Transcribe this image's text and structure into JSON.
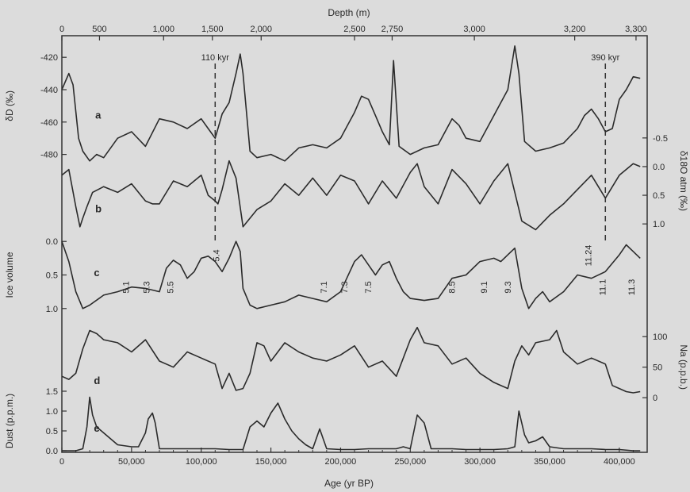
{
  "chart_data": {
    "type": "line",
    "x_axis": {
      "label": "Age (yr BP)",
      "range": [
        0,
        420000
      ],
      "ticks": [
        0,
        50000,
        100000,
        150000,
        200000,
        250000,
        300000,
        350000,
        400000
      ],
      "tick_labels": [
        "0",
        "50,000",
        "100,000",
        "150,000",
        "200,000",
        "250,000",
        "300,000",
        "350,000",
        "400,000"
      ]
    },
    "top_axis": {
      "label": "Depth (m)",
      "ticks": [
        {
          "age": 0,
          "label": "0"
        },
        {
          "age": 27000,
          "label": "500"
        },
        {
          "age": 73000,
          "label": "1,000"
        },
        {
          "age": 108000,
          "label": "1,500"
        },
        {
          "age": 143000,
          "label": "2,000"
        },
        {
          "age": 210000,
          "label": "2,500"
        },
        {
          "age": 237000,
          "label": "2,750"
        },
        {
          "age": 296000,
          "label": "3,000"
        },
        {
          "age": 368000,
          "label": "3,200"
        },
        {
          "age": 412000,
          "label": "3,300"
        }
      ]
    },
    "markers": [
      {
        "age": 110000,
        "label": "110 kyr"
      },
      {
        "age": 390000,
        "label": "390 kyr"
      }
    ],
    "series": [
      {
        "name": "a",
        "axis_label": "δD (‰)",
        "axis_side": "left",
        "axis_range": [
          -490,
          -415
        ],
        "ticks": [
          -420,
          -440,
          -460,
          -480
        ],
        "tick_labels": [
          "-420",
          "-440",
          "-460",
          "-480"
        ],
        "x": [
          0,
          5000,
          8000,
          12000,
          15000,
          20000,
          25000,
          30000,
          40000,
          50000,
          60000,
          70000,
          80000,
          90000,
          100000,
          105000,
          110000,
          115000,
          120000,
          125000,
          128000,
          130000,
          135000,
          140000,
          150000,
          160000,
          170000,
          180000,
          190000,
          200000,
          205000,
          210000,
          215000,
          220000,
          225000,
          230000,
          235000,
          238000,
          242000,
          250000,
          260000,
          270000,
          280000,
          285000,
          290000,
          300000,
          310000,
          315000,
          320000,
          325000,
          328000,
          332000,
          340000,
          350000,
          360000,
          370000,
          375000,
          380000,
          385000,
          390000,
          395000,
          400000,
          405000,
          410000,
          415000
        ],
        "values": [
          -440,
          -430,
          -437,
          -470,
          -478,
          -484,
          -480,
          -482,
          -470,
          -466,
          -475,
          -458,
          -460,
          -464,
          -458,
          -464,
          -470,
          -455,
          -448,
          -430,
          -418,
          -430,
          -478,
          -482,
          -480,
          -484,
          -476,
          -474,
          -476,
          -470,
          -462,
          -454,
          -444,
          -446,
          -456,
          -466,
          -474,
          -422,
          -475,
          -480,
          -476,
          -474,
          -458,
          -462,
          -470,
          -472,
          -456,
          -448,
          -440,
          -413,
          -430,
          -472,
          -478,
          -476,
          -473,
          -464,
          -456,
          -452,
          -458,
          -466,
          -464,
          -446,
          -440,
          -432,
          -433
        ]
      },
      {
        "name": "b",
        "axis_label": "δ18O atm (‰)",
        "axis_side": "right",
        "axis_range": [
          1.15,
          -0.65
        ],
        "ticks": [
          -0.5,
          0.0,
          0.5,
          1.0
        ],
        "tick_labels": [
          "-0.5",
          "0.0",
          "0.5",
          "1.0"
        ],
        "x": [
          0,
          5000,
          10000,
          13000,
          15000,
          18000,
          22000,
          30000,
          40000,
          50000,
          60000,
          65000,
          70000,
          80000,
          90000,
          100000,
          105000,
          110000,
          112000,
          115000,
          120000,
          125000,
          130000,
          140000,
          150000,
          160000,
          170000,
          180000,
          190000,
          200000,
          210000,
          220000,
          230000,
          240000,
          250000,
          255000,
          260000,
          270000,
          280000,
          290000,
          300000,
          310000,
          320000,
          330000,
          340000,
          350000,
          360000,
          370000,
          380000,
          390000,
          400000,
          410000,
          415000
        ],
        "values": [
          0.15,
          0.05,
          0.7,
          1.05,
          0.9,
          0.7,
          0.45,
          0.35,
          0.45,
          0.3,
          0.6,
          0.65,
          0.65,
          0.25,
          0.35,
          0.15,
          0.5,
          0.6,
          0.65,
          0.4,
          -0.1,
          0.2,
          1.05,
          0.75,
          0.6,
          0.3,
          0.5,
          0.2,
          0.5,
          0.15,
          0.25,
          0.65,
          0.25,
          0.55,
          0.1,
          -0.05,
          0.35,
          0.65,
          0.05,
          0.3,
          0.65,
          0.25,
          -0.05,
          0.95,
          1.1,
          0.85,
          0.65,
          0.4,
          0.15,
          0.55,
          0.15,
          -0.05,
          0.0
        ]
      },
      {
        "name": "c",
        "axis_label": "Ice volume",
        "axis_side": "left",
        "axis_range": [
          1.05,
          -0.05
        ],
        "ticks": [
          0.0,
          0.5,
          1.0
        ],
        "tick_labels": [
          "0.0",
          "0.5",
          "1.0"
        ],
        "x": [
          0,
          5000,
          10000,
          15000,
          20000,
          30000,
          40000,
          50000,
          60000,
          70000,
          75000,
          80000,
          85000,
          90000,
          95000,
          100000,
          105000,
          110000,
          115000,
          120000,
          125000,
          128000,
          130000,
          135000,
          140000,
          150000,
          160000,
          170000,
          180000,
          190000,
          200000,
          210000,
          215000,
          220000,
          225000,
          230000,
          235000,
          240000,
          245000,
          250000,
          260000,
          270000,
          280000,
          290000,
          300000,
          310000,
          315000,
          320000,
          325000,
          330000,
          335000,
          340000,
          345000,
          350000,
          360000,
          370000,
          380000,
          390000,
          400000,
          405000,
          410000,
          415000
        ],
        "values": [
          0.0,
          0.3,
          0.75,
          1.0,
          0.95,
          0.8,
          0.75,
          0.68,
          0.7,
          0.75,
          0.4,
          0.28,
          0.35,
          0.55,
          0.45,
          0.25,
          0.22,
          0.3,
          0.45,
          0.25,
          0.0,
          0.15,
          0.7,
          0.95,
          1.0,
          0.95,
          0.9,
          0.8,
          0.85,
          0.9,
          0.75,
          0.3,
          0.2,
          0.35,
          0.5,
          0.35,
          0.3,
          0.55,
          0.75,
          0.85,
          0.88,
          0.85,
          0.55,
          0.5,
          0.3,
          0.25,
          0.3,
          0.2,
          0.1,
          0.7,
          1.0,
          0.85,
          0.75,
          0.9,
          0.75,
          0.5,
          0.55,
          0.45,
          0.2,
          0.05,
          0.15,
          0.25
        ]
      },
      {
        "name": "d",
        "axis_label": "Na (p.p.b.)",
        "axis_side": "right",
        "axis_range": [
          -5,
          125
        ],
        "ticks": [
          0,
          50,
          100
        ],
        "tick_labels": [
          "0",
          "50",
          "100"
        ],
        "x": [
          0,
          5000,
          10000,
          15000,
          20000,
          25000,
          30000,
          40000,
          50000,
          60000,
          70000,
          80000,
          90000,
          100000,
          110000,
          115000,
          120000,
          125000,
          130000,
          135000,
          140000,
          145000,
          150000,
          160000,
          170000,
          180000,
          190000,
          200000,
          210000,
          220000,
          230000,
          240000,
          250000,
          255000,
          260000,
          270000,
          280000,
          290000,
          300000,
          310000,
          320000,
          325000,
          330000,
          335000,
          340000,
          350000,
          355000,
          360000,
          370000,
          380000,
          390000,
          395000,
          400000,
          405000,
          410000,
          415000
        ],
        "values": [
          35,
          30,
          40,
          80,
          110,
          105,
          95,
          90,
          75,
          95,
          60,
          50,
          75,
          65,
          55,
          15,
          40,
          12,
          15,
          40,
          90,
          85,
          60,
          90,
          75,
          65,
          60,
          70,
          85,
          50,
          60,
          35,
          95,
          115,
          90,
          85,
          55,
          65,
          40,
          25,
          15,
          60,
          85,
          70,
          90,
          95,
          110,
          75,
          55,
          65,
          55,
          20,
          15,
          10,
          8,
          10
        ]
      },
      {
        "name": "e",
        "axis_label": "Dust (p.p.m.)",
        "axis_side": "left",
        "axis_range": [
          0,
          1.8
        ],
        "ticks": [
          0.0,
          0.5,
          1.0,
          1.5
        ],
        "tick_labels": [
          "0.0",
          "0.5",
          "1.0",
          "1.5"
        ],
        "x": [
          0,
          10000,
          15000,
          18000,
          20000,
          22000,
          25000,
          30000,
          35000,
          40000,
          50000,
          55000,
          60000,
          62000,
          65000,
          67000,
          70000,
          80000,
          90000,
          100000,
          110000,
          120000,
          130000,
          135000,
          140000,
          145000,
          150000,
          155000,
          160000,
          165000,
          170000,
          175000,
          180000,
          185000,
          190000,
          200000,
          210000,
          220000,
          230000,
          240000,
          245000,
          250000,
          255000,
          260000,
          265000,
          270000,
          280000,
          290000,
          300000,
          310000,
          320000,
          325000,
          328000,
          332000,
          335000,
          340000,
          345000,
          350000,
          360000,
          370000,
          380000,
          390000,
          400000,
          410000,
          415000
        ],
        "values": [
          0.0,
          0.0,
          0.05,
          0.6,
          1.35,
          0.9,
          0.6,
          0.45,
          0.3,
          0.15,
          0.1,
          0.1,
          0.45,
          0.8,
          0.95,
          0.7,
          0.05,
          0.05,
          0.05,
          0.05,
          0.05,
          0.03,
          0.03,
          0.6,
          0.75,
          0.6,
          0.95,
          1.2,
          0.8,
          0.5,
          0.3,
          0.15,
          0.05,
          0.55,
          0.05,
          0.03,
          0.03,
          0.05,
          0.05,
          0.05,
          0.1,
          0.05,
          0.9,
          0.7,
          0.05,
          0.05,
          0.05,
          0.03,
          0.03,
          0.03,
          0.05,
          0.1,
          1.0,
          0.4,
          0.2,
          0.25,
          0.35,
          0.1,
          0.05,
          0.05,
          0.05,
          0.03,
          0.03,
          0.0,
          0.0
        ]
      }
    ],
    "stage_labels": [
      {
        "age": 48000,
        "text": "5.1"
      },
      {
        "age": 63000,
        "text": "5.3"
      },
      {
        "age": 80000,
        "text": "5.5"
      },
      {
        "age": 113000,
        "text": "5.4"
      },
      {
        "age": 190000,
        "text": "7.1"
      },
      {
        "age": 205000,
        "text": "7.3"
      },
      {
        "age": 222000,
        "text": "7.5"
      },
      {
        "age": 282000,
        "text": "8.5"
      },
      {
        "age": 305000,
        "text": "9.1"
      },
      {
        "age": 322000,
        "text": "9.3"
      },
      {
        "age": 380000,
        "text": "11.24"
      },
      {
        "age": 390000,
        "text": "11.1"
      },
      {
        "age": 411000,
        "text": "11.3"
      }
    ],
    "grid": false
  }
}
